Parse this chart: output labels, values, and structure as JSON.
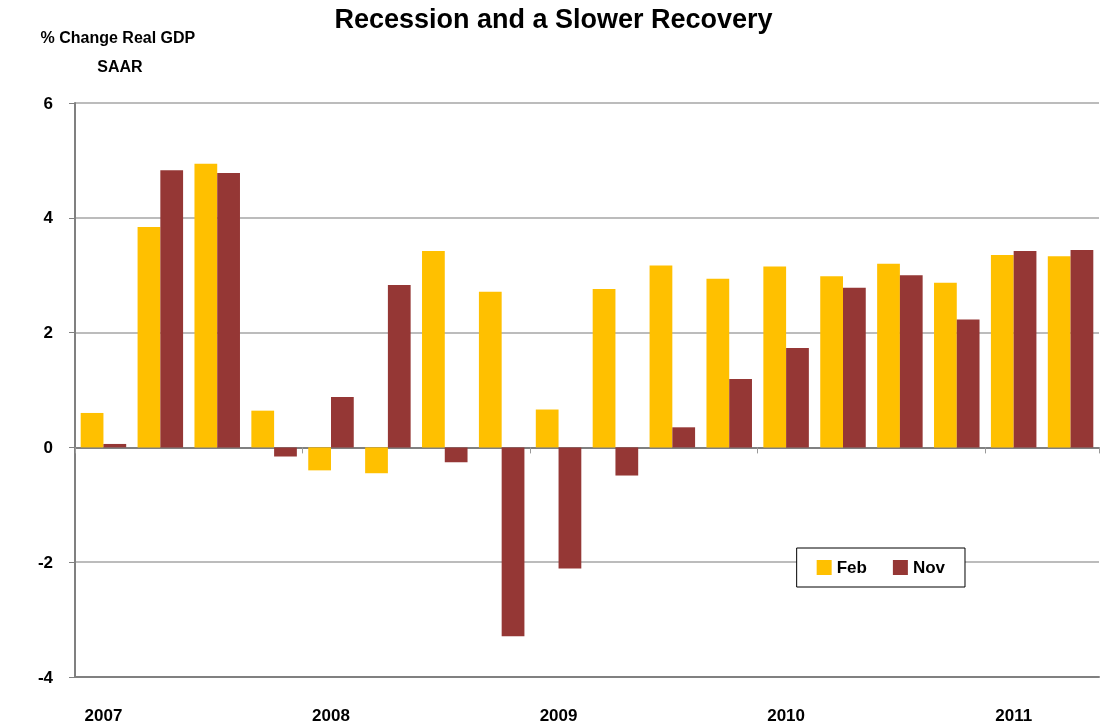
{
  "chart_data": {
    "type": "bar",
    "title": "Recession and a Slower Recovery",
    "ylabel": "% Change Real GDP SAAR",
    "categories": [
      "2007",
      null,
      null,
      null,
      "2008",
      null,
      null,
      null,
      "2009",
      null,
      null,
      null,
      "2010",
      null,
      null,
      null,
      "2011",
      null
    ],
    "series": [
      {
        "name": "Feb",
        "color": "#ffc000",
        "values": [
          0.6,
          3.84,
          4.94,
          0.64,
          -0.4,
          -0.45,
          3.42,
          2.71,
          0.66,
          2.76,
          3.17,
          2.94,
          3.15,
          2.98,
          3.2,
          2.87,
          3.35,
          3.33
        ]
      },
      {
        "name": "Nov",
        "color": "#953735",
        "values": [
          0.06,
          4.83,
          4.78,
          -0.16,
          0.88,
          2.83,
          -0.26,
          -3.29,
          -2.11,
          -0.49,
          0.35,
          1.19,
          1.73,
          2.78,
          3.0,
          2.23,
          3.42,
          3.44
        ]
      }
    ],
    "ylim": [
      -4,
      6
    ],
    "yticks": [
      -4,
      -2,
      0,
      2,
      4,
      6
    ],
    "grid": "y",
    "legend": "bottom right"
  }
}
